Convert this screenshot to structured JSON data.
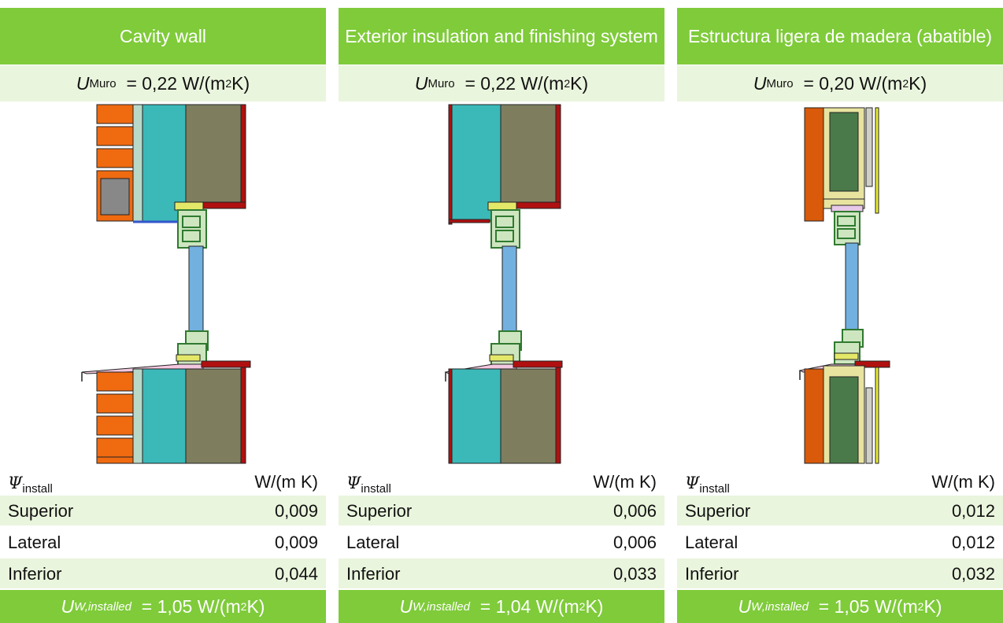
{
  "panels": [
    {
      "title": "Cavity wall",
      "u_wall": {
        "symbol": "U",
        "subscript": "Muro",
        "value": "= 0,22 W/(m",
        "exp": "2",
        "tail": " K)"
      },
      "psi": {
        "symbol": "Ψ",
        "subscript": "install",
        "unit": "W/(m K)"
      },
      "rows": [
        {
          "label": "Superior",
          "value": "0,009"
        },
        {
          "label": "Lateral",
          "value": "0,009"
        },
        {
          "label": "Inferior",
          "value": "0,044"
        }
      ],
      "u_installed": {
        "symbol": "U",
        "subscript": "W,installed",
        "value": "= 1,05 W/(m",
        "exp": "2",
        "tail": " K)"
      }
    },
    {
      "title": "Exterior insulation and finishing system",
      "u_wall": {
        "symbol": "U",
        "subscript": "Muro",
        "value": "= 0,22 W/(m",
        "exp": "2",
        "tail": " K)"
      },
      "psi": {
        "symbol": "Ψ",
        "subscript": "install",
        "unit": "W/(m K)"
      },
      "rows": [
        {
          "label": "Superior",
          "value": "0,006"
        },
        {
          "label": "Lateral",
          "value": "0,006"
        },
        {
          "label": "Inferior",
          "value": "0,033"
        }
      ],
      "u_installed": {
        "symbol": "U",
        "subscript": "W,installed",
        "value": "= 1,04 W/(m",
        "exp": "2",
        "tail": " K)"
      }
    },
    {
      "title": "Estructura ligera de madera (abatible)",
      "u_wall": {
        "symbol": "U",
        "subscript": "Muro",
        "value": "= 0,20 W/(m",
        "exp": "2",
        "tail": " K)"
      },
      "psi": {
        "symbol": "Ψ",
        "subscript": "install",
        "unit": "W/(m K)"
      },
      "rows": [
        {
          "label": "Superior",
          "value": "0,012"
        },
        {
          "label": "Lateral",
          "value": "0,012"
        },
        {
          "label": "Inferior",
          "value": "0,032"
        }
      ],
      "u_installed": {
        "symbol": "U",
        "subscript": "W,installed",
        "value": "= 1,05 W/(m",
        "exp": "2",
        "tail": " K)"
      }
    }
  ],
  "colors": {
    "header_green": "#7fcb3a",
    "row_tint": "#eaf5dd",
    "brick": "#f06a10",
    "insulation_teal": "#3bb8b8",
    "masonry_olive": "#7e7d5e",
    "plaster_red": "#b01010",
    "glass_blue": "#72b0e0",
    "frame_green": "#4aa04a",
    "timber_green": "#4a7a4a",
    "wood_fibre": "#e8e4a0"
  }
}
